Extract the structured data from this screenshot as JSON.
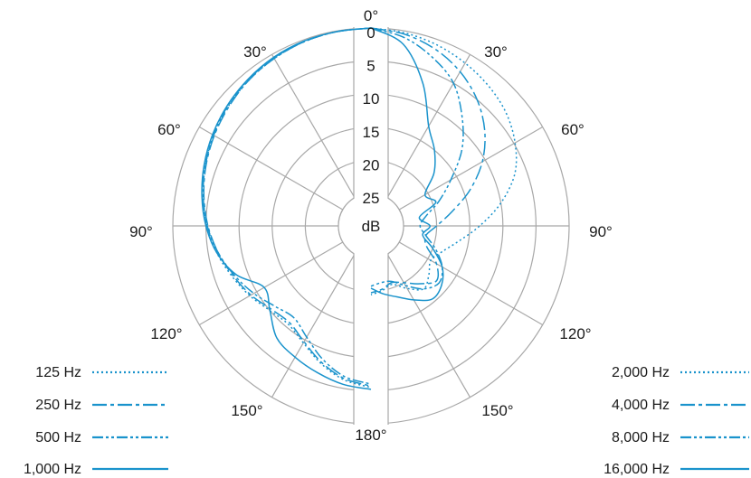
{
  "chart_data": {
    "type": "polar",
    "title": "",
    "unit_label": "dB",
    "radial_ticks": [
      "0",
      "5",
      "10",
      "15",
      "20",
      "25"
    ],
    "radial_range_db": [
      0,
      25
    ],
    "angle_labels": [
      {
        "deg": 0,
        "label": "0°"
      },
      {
        "deg": 30,
        "label": "30°"
      },
      {
        "deg": 60,
        "label": "60°"
      },
      {
        "deg": 90,
        "label": "90°"
      },
      {
        "deg": 120,
        "label": "120°"
      },
      {
        "deg": 150,
        "label": "150°"
      },
      {
        "deg": 180,
        "label": "180°"
      }
    ],
    "line_color": "#1a93cc",
    "legend_left": [
      {
        "name": "125 Hz",
        "dash": "dotted"
      },
      {
        "name": "250 Hz",
        "dash": "dash-dot"
      },
      {
        "name": "500 Hz",
        "dash": "dash-dot-dot"
      },
      {
        "name": "1,000 Hz",
        "dash": "solid"
      }
    ],
    "legend_right": [
      {
        "name": "2,000 Hz",
        "dash": "dotted"
      },
      {
        "name": "4,000 Hz",
        "dash": "dash-dot"
      },
      {
        "name": "8,000 Hz",
        "dash": "dash-dot-dot"
      },
      {
        "name": "16,000 Hz",
        "dash": "solid"
      }
    ],
    "angles_deg": [
      0,
      10,
      20,
      30,
      40,
      50,
      60,
      70,
      80,
      90,
      100,
      110,
      120,
      130,
      140,
      150,
      160,
      170,
      180
    ],
    "series": [
      {
        "name": "125 Hz",
        "side": "left",
        "dash": "dotted",
        "attenuation_db": [
          0,
          0.1,
          0.3,
          0.7,
          1.2,
          1.8,
          2.5,
          3.3,
          4.2,
          5.2,
          6.3,
          7.6,
          8.8,
          10.0,
          10.5,
          9.5,
          7.8,
          6.3,
          5.5
        ]
      },
      {
        "name": "250 Hz",
        "side": "left",
        "dash": "dash-dot",
        "attenuation_db": [
          0,
          0.1,
          0.3,
          0.7,
          1.2,
          1.9,
          2.6,
          3.4,
          4.3,
          5.3,
          6.5,
          7.8,
          9.0,
          10.3,
          10.8,
          9.7,
          8.0,
          6.5,
          5.7
        ]
      },
      {
        "name": "500 Hz",
        "side": "left",
        "dash": "dash-dot-dot",
        "attenuation_db": [
          0,
          0.1,
          0.3,
          0.6,
          1.1,
          1.7,
          2.5,
          3.3,
          4.2,
          5.2,
          6.5,
          8.0,
          9.5,
          11.0,
          11.8,
          10.5,
          8.5,
          6.8,
          6.0
        ]
      },
      {
        "name": "1,000 Hz",
        "side": "left",
        "dash": "solid",
        "attenuation_db": [
          0,
          0.1,
          0.2,
          0.5,
          1.0,
          1.6,
          2.3,
          3.1,
          4.0,
          5.0,
          6.3,
          8.3,
          11.3,
          10.0,
          7.8,
          7.0,
          6.3,
          5.6,
          5.2
        ]
      },
      {
        "name": "2,000 Hz",
        "side": "right",
        "dash": "dotted",
        "attenuation_db": [
          0,
          0.3,
          0.8,
          1.5,
          2.3,
          3.3,
          4.8,
          6.8,
          10.0,
          13.5,
          16.5,
          18.5,
          19.5,
          18.5,
          17.5,
          19.0,
          20.5,
          20.0,
          19.5
        ]
      },
      {
        "name": "4,000 Hz",
        "side": "right",
        "dash": "dash-dot",
        "attenuation_db": [
          0,
          0.5,
          1.5,
          3.0,
          5.0,
          7.5,
          10.5,
          14.0,
          17.5,
          20.0,
          21.5,
          21.0,
          18.5,
          17.0,
          18.5,
          20.0,
          20.8,
          20.2,
          19.8
        ]
      },
      {
        "name": "8,000 Hz",
        "side": "right",
        "dash": "dash-dot-dot",
        "attenuation_db": [
          0,
          1.0,
          2.8,
          5.0,
          8.5,
          12.0,
          16.0,
          19.0,
          21.5,
          22.5,
          21.5,
          19.5,
          17.5,
          16.5,
          17.5,
          19.5,
          21.0,
          21.2,
          20.8
        ]
      },
      {
        "name": "16,000 Hz",
        "side": "right",
        "dash": "solid",
        "attenuation_db": [
          0,
          2.0,
          7.0,
          12.5,
          15.0,
          17.5,
          20.5,
          19.5,
          22.5,
          21.0,
          22.0,
          20.0,
          17.5,
          16.0,
          15.5,
          17.0,
          18.5,
          19.5,
          20.5
        ]
      }
    ]
  }
}
